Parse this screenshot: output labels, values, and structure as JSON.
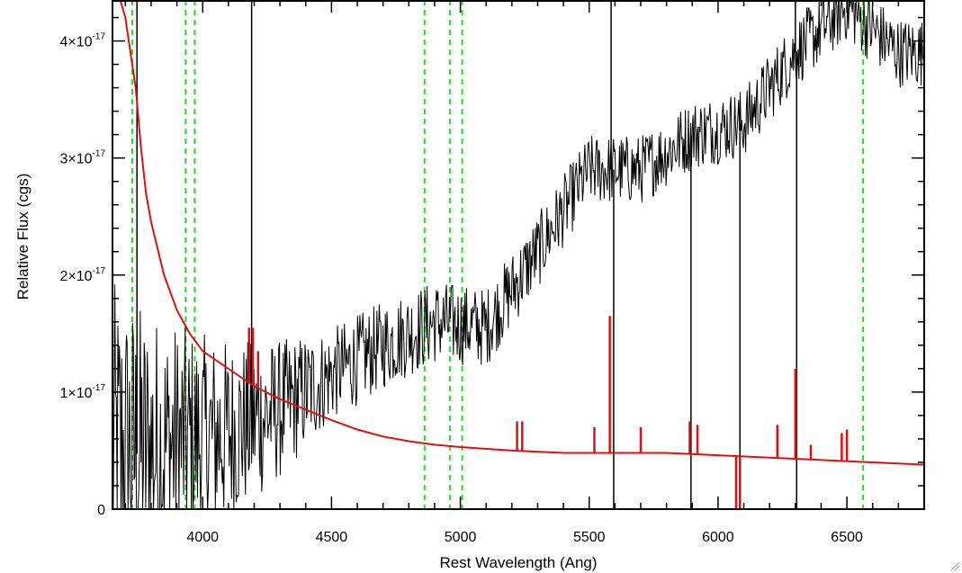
{
  "chart_data": {
    "type": "line",
    "title": "",
    "xlabel": "Rest Wavelength (Ang)",
    "ylabel": "Relative Flux (cgs)",
    "xlim": [
      3650,
      6800
    ],
    "ylim": [
      0,
      4.35e-17
    ],
    "x_ticks": [
      {
        "value": 4000,
        "label": "4000"
      },
      {
        "value": 4500,
        "label": "4500"
      },
      {
        "value": 5000,
        "label": "5000"
      },
      {
        "value": 5500,
        "label": "5500"
      },
      {
        "value": 6000,
        "label": "6000"
      },
      {
        "value": 6500,
        "label": "6500"
      }
    ],
    "y_ticks": [
      {
        "value": 0,
        "mantissa": "0",
        "exponent": ""
      },
      {
        "value": 1e-17,
        "mantissa": "1×10",
        "exponent": "-17"
      },
      {
        "value": 2e-17,
        "mantissa": "2×10",
        "exponent": "-17"
      },
      {
        "value": 3e-17,
        "mantissa": "3×10",
        "exponent": "-17"
      },
      {
        "value": 4e-17,
        "mantissa": "4×10",
        "exponent": "-17"
      }
    ],
    "vlines": [
      3727,
      3934,
      3969,
      4861,
      4959,
      5007,
      6563
    ],
    "vline_color": "#22dd22",
    "series": [
      {
        "color": "#000000",
        "trend_x": [
          3700,
          3900,
          4100,
          4300,
          4500,
          4700,
          4900,
          5100,
          5300,
          5500,
          5700,
          5900,
          6100,
          6300,
          6500,
          6700
        ],
        "trend_y": [
          4.5e-18,
          5.5e-18,
          6.5e-18,
          8.5e-18,
          1.15e-17,
          1.4e-17,
          1.6e-17,
          1.55e-17,
          2.2e-17,
          2.9e-17,
          2.9e-17,
          3.2e-17,
          3.3e-17,
          3.9e-17,
          4.3e-17,
          3.9e-17
        ],
        "noise_x": [
          3650,
          3800,
          4000,
          4300,
          4500,
          5000,
          5500,
          6000,
          6800
        ],
        "noise_y": [
          1.5e-17,
          1.2e-17,
          9e-18,
          6e-18,
          4e-18,
          3.5e-18,
          3e-18,
          3e-18,
          3e-18
        ],
        "spikes": [
          {
            "x": 3745,
            "y": 4.35e-17
          },
          {
            "x": 4190,
            "y": 4.35e-17
          },
          {
            "x": 5585,
            "y": 4.35e-17
          },
          {
            "x": 5595,
            "y": 0
          },
          {
            "x": 5895,
            "y": 0
          },
          {
            "x": 6085,
            "y": 0
          },
          {
            "x": 6300,
            "y": 4.35e-17
          },
          {
            "x": 6305,
            "y": 0
          }
        ]
      },
      {
        "color": "#dd1111",
        "x": [
          3680,
          3700,
          3720,
          3740,
          3760,
          3780,
          3800,
          3850,
          3900,
          3950,
          4000,
          4100,
          4200,
          4300,
          4400,
          4500,
          4600,
          4700,
          4800,
          4900,
          5000,
          5200,
          5400,
          5600,
          5800,
          6000,
          6200,
          6400,
          6600,
          6800
        ],
        "y": [
          4.35e-17,
          4.2e-17,
          3.9e-17,
          3.6e-17,
          3.1e-17,
          2.7e-17,
          2.45e-17,
          2e-17,
          1.7e-17,
          1.5e-17,
          1.35e-17,
          1.2e-17,
          1.05e-17,
          9.4e-18,
          8.5e-18,
          7.6e-18,
          6.8e-18,
          6.2e-18,
          5.8e-18,
          5.5e-18,
          5.3e-18,
          5e-18,
          4.8e-18,
          4.8e-18,
          4.8e-18,
          4.6e-18,
          4.4e-18,
          4.2e-18,
          4e-18,
          3.8e-18
        ],
        "spikes": [
          {
            "x": 4180,
            "y": 1.55e-17
          },
          {
            "x": 4195,
            "y": 1.55e-17
          },
          {
            "x": 4215,
            "y": 1.35e-17
          },
          {
            "x": 5220,
            "y": 7.5e-18
          },
          {
            "x": 5240,
            "y": 7.5e-18
          },
          {
            "x": 5520,
            "y": 7e-18
          },
          {
            "x": 5580,
            "y": 1.65e-17
          },
          {
            "x": 5700,
            "y": 7e-18
          },
          {
            "x": 5890,
            "y": 7.5e-18
          },
          {
            "x": 5920,
            "y": 7.2e-18
          },
          {
            "x": 6070,
            "y": 0
          },
          {
            "x": 6085,
            "y": 0
          },
          {
            "x": 6230,
            "y": 7.2e-18
          },
          {
            "x": 6300,
            "y": 1.2e-17
          },
          {
            "x": 6360,
            "y": 5.5e-18
          },
          {
            "x": 6480,
            "y": 6.5e-18
          },
          {
            "x": 6500,
            "y": 6.8e-18
          }
        ]
      }
    ]
  }
}
